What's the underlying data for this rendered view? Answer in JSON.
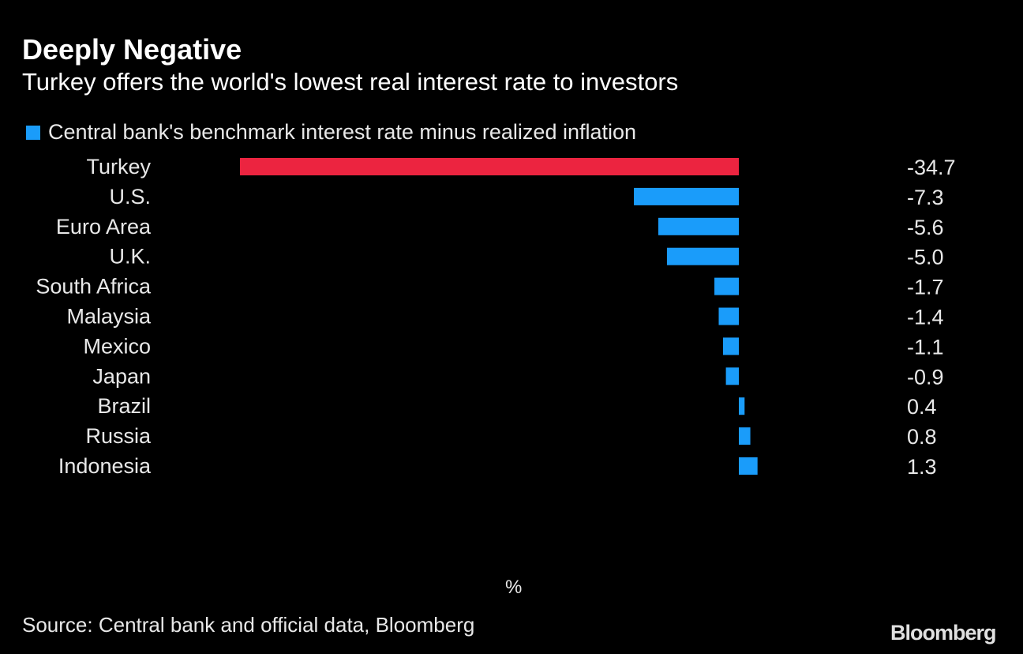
{
  "title": "Deeply Negative",
  "subtitle": "Turkey offers the world's lowest real interest rate to investors",
  "source": "Source: Central bank and official data, Bloomberg",
  "logo": "Bloomberg",
  "chart_data": {
    "type": "bar",
    "orientation": "horizontal",
    "title": "Deeply Negative",
    "subtitle": "Turkey offers the world's lowest real interest rate to investors",
    "unit": "%",
    "legend": {
      "label": "Central bank's benchmark interest rate minus realized inflation",
      "placement": "top-left"
    },
    "categories": [
      "Turkey",
      "U.S.",
      "Euro Area",
      "U.K.",
      "South Africa",
      "Malaysia",
      "Mexico",
      "Japan",
      "Brazil",
      "Russia",
      "Indonesia"
    ],
    "values": [
      -34.7,
      -7.3,
      -5.6,
      -5.0,
      -1.7,
      -1.4,
      -1.1,
      -0.9,
      0.4,
      0.8,
      1.3
    ],
    "value_labels": [
      "-34.7",
      "-7.3",
      "-5.6",
      "-5.0",
      "-1.7",
      "-1.4",
      "-1.1",
      "-0.9",
      "0.4",
      "0.8",
      "1.3"
    ],
    "highlight": "Turkey",
    "xlim": [
      -34.7,
      1.3
    ],
    "grid": false,
    "colors": {
      "default": "#1a9cfa",
      "highlight": "#ec2440",
      "background": "#000000"
    }
  }
}
